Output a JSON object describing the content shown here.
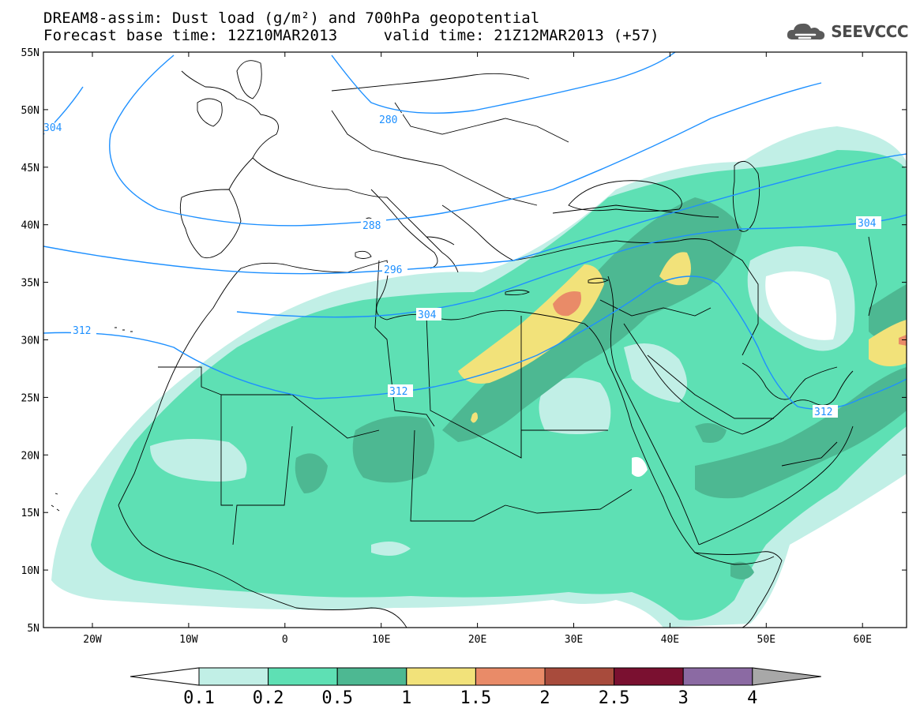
{
  "header": {
    "title_line1": "DREAM8-assim: Dust load (g/m²) and 700hPa geopotential",
    "title_line2": "Forecast base time: 12Z10MAR2013     valid time: 21Z12MAR2013 (+57)"
  },
  "logo": {
    "text": "SEEVCCC",
    "icon": "cloud-logo-icon"
  },
  "map": {
    "lat_labels": [
      "55N",
      "50N",
      "45N",
      "40N",
      "35N",
      "30N",
      "25N",
      "20N",
      "15N",
      "10N",
      "5N"
    ],
    "lon_labels": [
      "20W",
      "10W",
      "0",
      "10E",
      "20E",
      "30E",
      "40E",
      "50E",
      "60E"
    ],
    "contour_labels": [
      "280",
      "288",
      "296",
      "304",
      "312",
      "312",
      "304",
      "312",
      "304"
    ],
    "colors": {
      "frame": "#000000",
      "coastline": "#000000",
      "contour": "#1e90ff"
    }
  },
  "colorbar": {
    "labels": [
      "0.1",
      "0.2",
      "0.5",
      "1",
      "1.5",
      "2",
      "2.5",
      "3",
      "4"
    ],
    "colors": [
      "#c1efe6",
      "#5ee0b4",
      "#4db892",
      "#f2e27a",
      "#e98b68",
      "#a84b3c",
      "#7a1030",
      "#8b6aa3"
    ],
    "under_color": "#ffffff",
    "over_color": "#a8a8a8"
  }
}
